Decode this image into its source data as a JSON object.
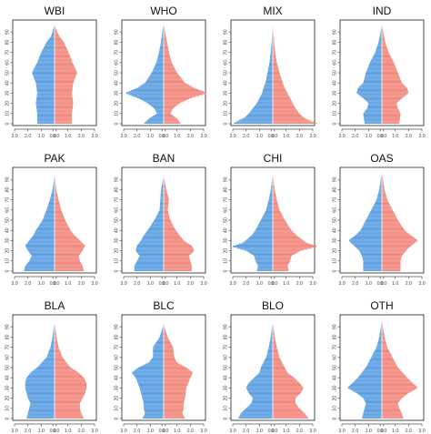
{
  "figure": {
    "colors": {
      "left": "#5da5ea",
      "right": "#fa8c80",
      "line": "#000000",
      "frame": "#222222",
      "axis": "#555555"
    }
  },
  "chart_data": [
    {
      "type": "bar",
      "orientation": "horizontal-pyramid",
      "title": "WBI",
      "age_ticks": [
        "0",
        "10",
        "20",
        "30",
        "40",
        "50",
        "60",
        "70",
        "80",
        "90"
      ],
      "x_tick_labels": [
        "3.0",
        "2.0",
        "1.0",
        "0.0",
        "0.0",
        "1.0",
        "2.0",
        "3.0"
      ],
      "xlim": [
        -3,
        3
      ],
      "ylim": [
        0,
        100
      ],
      "profile_age": [
        0,
        10,
        20,
        30,
        40,
        50,
        60,
        70,
        80,
        85,
        90,
        95
      ],
      "left": [
        1.3,
        1.3,
        1.4,
        1.3,
        1.4,
        1.7,
        1.3,
        1.0,
        0.6,
        0.3,
        0.15,
        0.05
      ],
      "right": [
        1.3,
        1.3,
        1.4,
        1.3,
        1.4,
        1.7,
        1.35,
        1.05,
        0.7,
        0.4,
        0.2,
        0.05
      ]
    },
    {
      "type": "bar",
      "orientation": "horizontal-pyramid",
      "title": "WHO",
      "age_ticks": [
        "0",
        "10",
        "20",
        "30",
        "40",
        "50",
        "60",
        "70",
        "80",
        "90"
      ],
      "x_tick_labels": [
        "3.0",
        "2.0",
        "1.0",
        "0.0",
        "0.0",
        "1.0",
        "2.0",
        "3.0"
      ],
      "xlim": [
        -3,
        3
      ],
      "ylim": [
        0,
        100
      ],
      "profile_age": [
        0,
        5,
        10,
        15,
        20,
        25,
        30,
        35,
        40,
        50,
        60,
        70,
        80,
        90,
        95
      ],
      "left": [
        1.5,
        1.1,
        0.5,
        0.7,
        1.2,
        1.9,
        2.9,
        2.0,
        1.4,
        0.9,
        0.55,
        0.35,
        0.2,
        0.1,
        0.05
      ],
      "right": [
        1.3,
        1.0,
        0.5,
        0.7,
        1.2,
        2.0,
        3.3,
        2.3,
        1.6,
        1.0,
        0.6,
        0.4,
        0.25,
        0.1,
        0.05
      ]
    },
    {
      "type": "bar",
      "orientation": "horizontal-pyramid",
      "title": "MIX",
      "age_ticks": [
        "0",
        "10",
        "20",
        "30",
        "40",
        "50",
        "60",
        "70",
        "80",
        "90"
      ],
      "x_tick_labels": [
        "3.0",
        "2.0",
        "1.0",
        "0.0",
        "0.0",
        "1.0",
        "2.0",
        "3.0"
      ],
      "xlim": [
        -3,
        3
      ],
      "ylim": [
        0,
        100
      ],
      "profile_age": [
        0,
        3,
        6,
        10,
        15,
        20,
        25,
        30,
        35,
        40,
        50,
        60,
        70,
        80,
        90,
        95
      ],
      "left": [
        3.0,
        2.6,
        2.1,
        1.8,
        1.5,
        1.2,
        1.0,
        0.8,
        0.7,
        0.55,
        0.4,
        0.25,
        0.15,
        0.08,
        0.04,
        0.02
      ],
      "right": [
        3.4,
        2.8,
        2.3,
        2.0,
        1.7,
        1.5,
        1.3,
        1.1,
        0.9,
        0.75,
        0.5,
        0.3,
        0.18,
        0.1,
        0.05,
        0.02
      ]
    },
    {
      "type": "bar",
      "orientation": "horizontal-pyramid",
      "title": "IND",
      "age_ticks": [
        "0",
        "10",
        "20",
        "30",
        "40",
        "50",
        "60",
        "70",
        "80",
        "90"
      ],
      "x_tick_labels": [
        "3.0",
        "2.0",
        "1.0",
        "0.0",
        "0.0",
        "1.0",
        "2.0",
        "3.0"
      ],
      "xlim": [
        -3,
        3
      ],
      "ylim": [
        0,
        100
      ],
      "profile_age": [
        0,
        10,
        15,
        20,
        25,
        30,
        35,
        40,
        50,
        60,
        70,
        80,
        90,
        95
      ],
      "left": [
        1.3,
        1.4,
        1.1,
        1.0,
        1.4,
        1.9,
        1.8,
        1.4,
        1.2,
        0.9,
        0.5,
        0.25,
        0.1,
        0.04
      ],
      "right": [
        1.3,
        1.4,
        1.2,
        1.1,
        1.5,
        2.0,
        1.9,
        1.5,
        1.2,
        0.9,
        0.5,
        0.25,
        0.1,
        0.04
      ]
    },
    {
      "type": "bar",
      "orientation": "horizontal-pyramid",
      "title": "PAK",
      "age_ticks": [
        "0",
        "10",
        "20",
        "30",
        "40",
        "50",
        "60",
        "70",
        "80",
        "90"
      ],
      "x_tick_labels": [
        "3.0",
        "2.0",
        "1.0",
        "0.0",
        "0.0",
        "1.0",
        "2.0",
        "3.0"
      ],
      "xlim": [
        -3,
        3
      ],
      "ylim": [
        0,
        100
      ],
      "profile_age": [
        0,
        5,
        10,
        15,
        20,
        25,
        30,
        35,
        40,
        50,
        60,
        70,
        80,
        90,
        95
      ],
      "left": [
        2.3,
        2.2,
        1.9,
        1.7,
        2.0,
        2.2,
        1.9,
        1.6,
        1.4,
        0.9,
        0.6,
        0.35,
        0.15,
        0.05,
        0.02
      ],
      "right": [
        2.2,
        2.1,
        1.9,
        1.8,
        2.1,
        2.3,
        1.9,
        1.5,
        1.2,
        0.8,
        0.5,
        0.3,
        0.12,
        0.05,
        0.02
      ]
    },
    {
      "type": "bar",
      "orientation": "horizontal-pyramid",
      "title": "BAN",
      "age_ticks": [
        "0",
        "10",
        "20",
        "30",
        "40",
        "50",
        "60",
        "70",
        "80",
        "90"
      ],
      "x_tick_labels": [
        "3.0",
        "2.0",
        "1.0",
        "0.0",
        "0.0",
        "1.0",
        "2.0",
        "3.0"
      ],
      "xlim": [
        -3,
        3
      ],
      "ylim": [
        0,
        100
      ],
      "profile_age": [
        0,
        5,
        10,
        15,
        20,
        25,
        30,
        35,
        40,
        50,
        60,
        70,
        80,
        90,
        95
      ],
      "left": [
        2.2,
        2.2,
        2.0,
        1.8,
        2.1,
        2.0,
        1.7,
        1.5,
        1.2,
        0.7,
        0.3,
        0.25,
        0.2,
        0.05,
        0.02
      ],
      "right": [
        2.1,
        2.1,
        2.0,
        1.9,
        2.3,
        2.1,
        1.5,
        1.2,
        0.9,
        0.5,
        0.3,
        0.4,
        0.2,
        0.05,
        0.02
      ]
    },
    {
      "type": "bar",
      "orientation": "horizontal-pyramid",
      "title": "CHI",
      "age_ticks": [
        "0",
        "10",
        "20",
        "30",
        "40",
        "50",
        "60",
        "70",
        "80",
        "90"
      ],
      "x_tick_labels": [
        "3.0",
        "2.0",
        "1.0",
        "0.0",
        "0.0",
        "1.0",
        "2.0",
        "3.0"
      ],
      "xlim": [
        -3,
        3
      ],
      "ylim": [
        0,
        100
      ],
      "profile_age": [
        0,
        5,
        10,
        15,
        20,
        24,
        28,
        35,
        40,
        50,
        60,
        70,
        80,
        90,
        95
      ],
      "left": [
        1.2,
        1.1,
        1.3,
        1.4,
        2.0,
        3.1,
        2.2,
        1.6,
        1.3,
        0.9,
        0.5,
        0.3,
        0.15,
        0.05,
        0.02
      ],
      "right": [
        1.2,
        1.1,
        1.3,
        1.4,
        2.1,
        3.4,
        2.5,
        1.8,
        1.4,
        0.9,
        0.5,
        0.3,
        0.15,
        0.05,
        0.02
      ]
    },
    {
      "type": "bar",
      "orientation": "horizontal-pyramid",
      "title": "OAS",
      "age_ticks": [
        "0",
        "10",
        "20",
        "30",
        "40",
        "50",
        "60",
        "70",
        "80",
        "90"
      ],
      "x_tick_labels": [
        "3.0",
        "2.0",
        "1.0",
        "0.0",
        "0.0",
        "1.0",
        "2.0",
        "3.0"
      ],
      "xlim": [
        -3,
        3
      ],
      "ylim": [
        0,
        100
      ],
      "profile_age": [
        0,
        10,
        15,
        20,
        25,
        30,
        35,
        40,
        50,
        60,
        70,
        80,
        90,
        95
      ],
      "left": [
        1.4,
        1.4,
        1.5,
        1.7,
        2.1,
        2.5,
        2.0,
        1.6,
        1.2,
        0.8,
        0.4,
        0.2,
        0.08,
        0.03
      ],
      "right": [
        1.4,
        1.4,
        1.5,
        1.8,
        2.2,
        2.7,
        2.2,
        1.7,
        1.2,
        0.8,
        0.4,
        0.2,
        0.08,
        0.03
      ]
    },
    {
      "type": "bar",
      "orientation": "horizontal-pyramid",
      "title": "BLA",
      "age_ticks": [
        "0",
        "10",
        "20",
        "30",
        "40",
        "50",
        "60",
        "70",
        "80",
        "90"
      ],
      "x_tick_labels": [
        "3.0",
        "2.0",
        "1.0",
        "0.0",
        "0.0",
        "1.0",
        "2.0",
        "3.0"
      ],
      "xlim": [
        -3,
        3
      ],
      "ylim": [
        0,
        100
      ],
      "profile_age": [
        0,
        5,
        10,
        15,
        20,
        25,
        30,
        35,
        40,
        45,
        50,
        60,
        70,
        80,
        90,
        95
      ],
      "left": [
        2.1,
        2.0,
        1.9,
        1.8,
        2.0,
        2.1,
        2.2,
        2.2,
        2.1,
        1.8,
        1.3,
        0.6,
        0.3,
        0.15,
        0.05,
        0.02
      ],
      "right": [
        2.2,
        2.0,
        1.9,
        1.9,
        2.1,
        2.3,
        2.4,
        2.4,
        2.2,
        1.8,
        1.2,
        0.6,
        0.3,
        0.15,
        0.05,
        0.02
      ]
    },
    {
      "type": "bar",
      "orientation": "horizontal-pyramid",
      "title": "BLC",
      "age_ticks": [
        "0",
        "10",
        "20",
        "30",
        "40",
        "50",
        "60",
        "70",
        "80",
        "90"
      ],
      "x_tick_labels": [
        "3.0",
        "2.0",
        "1.0",
        "0.0",
        "0.0",
        "1.0",
        "2.0",
        "3.0"
      ],
      "xlim": [
        -3,
        3
      ],
      "ylim": [
        0,
        100
      ],
      "profile_age": [
        0,
        5,
        10,
        15,
        20,
        30,
        40,
        45,
        50,
        55,
        60,
        70,
        80,
        90,
        95
      ],
      "left": [
        1.6,
        1.4,
        1.5,
        1.5,
        1.6,
        1.8,
        2.1,
        2.4,
        1.9,
        1.1,
        0.8,
        0.8,
        0.3,
        0.05,
        0.02
      ],
      "right": [
        1.6,
        1.4,
        1.5,
        1.5,
        1.6,
        1.7,
        2.0,
        2.2,
        1.7,
        1.0,
        0.8,
        0.7,
        0.3,
        0.05,
        0.02
      ]
    },
    {
      "type": "bar",
      "orientation": "horizontal-pyramid",
      "title": "BLO",
      "age_ticks": [
        "0",
        "10",
        "20",
        "30",
        "40",
        "50",
        "60",
        "70",
        "80",
        "90"
      ],
      "x_tick_labels": [
        "3.0",
        "2.0",
        "1.0",
        "0.0",
        "0.0",
        "1.0",
        "2.0",
        "3.0"
      ],
      "xlim": [
        -3,
        3
      ],
      "ylim": [
        0,
        100
      ],
      "profile_age": [
        0,
        5,
        10,
        15,
        20,
        25,
        30,
        35,
        40,
        45,
        50,
        60,
        70,
        80,
        90,
        95
      ],
      "left": [
        2.6,
        2.4,
        2.0,
        1.6,
        1.5,
        1.8,
        2.0,
        1.8,
        1.4,
        1.0,
        0.9,
        0.5,
        0.3,
        0.15,
        0.05,
        0.02
      ],
      "right": [
        2.7,
        2.4,
        2.0,
        1.7,
        1.7,
        2.1,
        2.3,
        2.0,
        1.6,
        1.1,
        0.9,
        0.5,
        0.3,
        0.15,
        0.05,
        0.02
      ]
    },
    {
      "type": "bar",
      "orientation": "horizontal-pyramid",
      "title": "OTH",
      "age_ticks": [
        "0",
        "10",
        "20",
        "30",
        "40",
        "50",
        "60",
        "70",
        "80",
        "90"
      ],
      "x_tick_labels": [
        "3.0",
        "2.0",
        "1.0",
        "0.0",
        "0.0",
        "1.0",
        "2.0",
        "3.0"
      ],
      "xlim": [
        -3,
        3
      ],
      "ylim": [
        0,
        100
      ],
      "profile_age": [
        0,
        5,
        10,
        15,
        20,
        25,
        30,
        35,
        40,
        50,
        60,
        70,
        80,
        90,
        95
      ],
      "left": [
        1.5,
        1.4,
        1.3,
        1.2,
        1.4,
        1.9,
        2.6,
        2.2,
        1.8,
        1.2,
        0.8,
        0.4,
        0.2,
        0.07,
        0.03
      ],
      "right": [
        1.6,
        1.5,
        1.3,
        1.2,
        1.5,
        2.0,
        2.7,
        2.3,
        1.9,
        1.2,
        0.8,
        0.4,
        0.2,
        0.07,
        0.03
      ]
    }
  ]
}
